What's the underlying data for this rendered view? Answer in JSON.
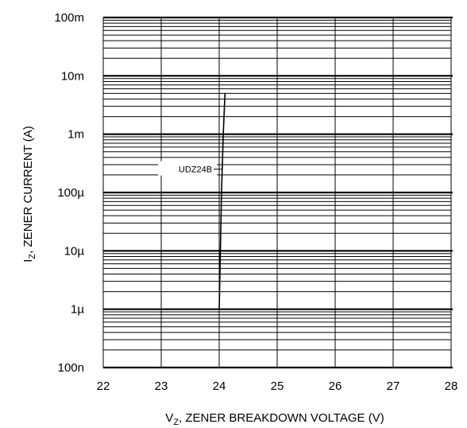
{
  "chart_data": {
    "type": "line",
    "title": "",
    "xlabel": {
      "prefix": "V",
      "sub": "Z",
      "suffix": ", ZENER BREAKDOWN VOLTAGE (V)"
    },
    "ylabel": {
      "prefix": "I",
      "sub": "Z",
      "suffix": ", ZENER CURRENT (A)"
    },
    "xlim": [
      22,
      28
    ],
    "ylim": [
      1e-07,
      0.1
    ],
    "y_scale": "log",
    "grid": true,
    "x_ticks": [
      {
        "value": 22,
        "label": "22"
      },
      {
        "value": 23,
        "label": "23"
      },
      {
        "value": 24,
        "label": "24"
      },
      {
        "value": 25,
        "label": "25"
      },
      {
        "value": 26,
        "label": "26"
      },
      {
        "value": 27,
        "label": "27"
      },
      {
        "value": 28,
        "label": "28"
      }
    ],
    "y_ticks": [
      {
        "value": 1e-07,
        "label": "100n"
      },
      {
        "value": 1e-06,
        "label": "1µ"
      },
      {
        "value": 1e-05,
        "label": "10µ"
      },
      {
        "value": 0.0001,
        "label": "100µ"
      },
      {
        "value": 0.001,
        "label": "1m"
      },
      {
        "value": 0.01,
        "label": "10m"
      },
      {
        "value": 0.1,
        "label": "100m"
      }
    ],
    "series": [
      {
        "name": "UDZ24B",
        "color": "#000000",
        "points": [
          {
            "x": 24.0,
            "y": 1e-06
          },
          {
            "x": 24.02,
            "y": 1e-05
          },
          {
            "x": 24.04,
            "y": 0.0001
          },
          {
            "x": 24.07,
            "y": 0.001
          },
          {
            "x": 24.1,
            "y": 0.005
          }
        ]
      }
    ]
  }
}
